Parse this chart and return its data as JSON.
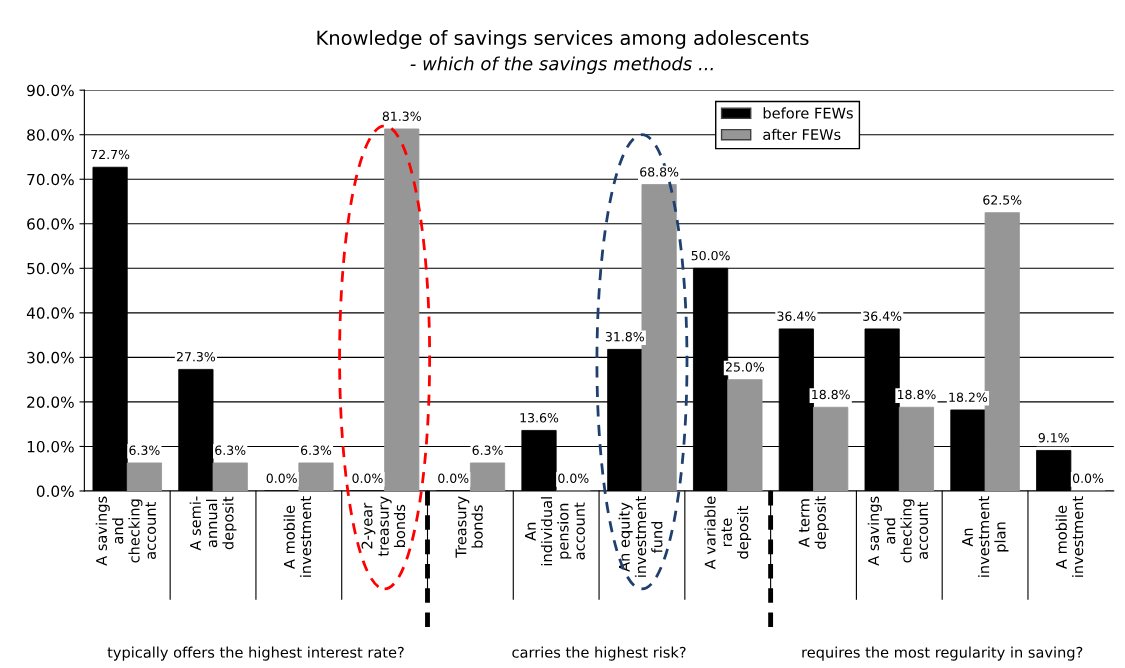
{
  "chart_data": {
    "type": "bar",
    "title": "Knowledge of savings services among adolescents",
    "subtitle": "- which of the savings methods ...",
    "categories": [
      "A savings\nand\nchecking\naccount",
      "A semi-\nannual\ndeposit",
      "A mobile\ninvestment",
      "2-year\ntreasury\nbonds",
      "Treasury\nbonds",
      "An\nindividual\npension\naccount",
      "An equity\ninvestment\nfund",
      "A variable\nrate\ndeposit",
      "A term\ndeposit",
      "A savings\nand\nchecking\naccount",
      "An\ninvestment\nplan",
      "A mobile\ninvestment"
    ],
    "series": [
      {
        "name": "before FEWs",
        "color": "#000000",
        "values": [
          72.7,
          27.3,
          0.0,
          0.0,
          0.0,
          13.6,
          31.8,
          50.0,
          36.4,
          36.4,
          18.2,
          9.1
        ],
        "value_labels": [
          "72.7%",
          "27.3%",
          "0.0%",
          "0.0%",
          "0.0%",
          "13.6%",
          "31.8%",
          "50.0%",
          "36.4%",
          "36.4%",
          "18.2%",
          "9.1%"
        ]
      },
      {
        "name": "after FEWs",
        "color": "#969696",
        "values": [
          6.3,
          6.3,
          6.3,
          81.3,
          6.3,
          0.0,
          68.8,
          25.0,
          18.8,
          18.8,
          62.5,
          0.0
        ],
        "value_labels": [
          "6.3%",
          "6.3%",
          "6.3%",
          "81.3%",
          "6.3%",
          "0.0%",
          "68.8%",
          "25.0%",
          "18.8%",
          "18.8%",
          "62.5%",
          "0.0%"
        ]
      }
    ],
    "annotations": [
      "typically offers the highest interest rate?",
      "carries the highest risk?",
      "requires the most regularity in saving?"
    ],
    "ylim": [
      0,
      90
    ],
    "yticks": [
      {
        "value": 0,
        "label": "0.0%"
      },
      {
        "value": 10,
        "label": "10.0%"
      },
      {
        "value": 20,
        "label": "20.0%"
      },
      {
        "value": 30,
        "label": "30.0%"
      },
      {
        "value": 40,
        "label": "40.0%"
      },
      {
        "value": 50,
        "label": "50.0%"
      },
      {
        "value": 60,
        "label": "60.0%"
      },
      {
        "value": 70,
        "label": "70.0%"
      },
      {
        "value": 80,
        "label": "80.0%"
      },
      {
        "value": 90,
        "label": "90.0%"
      }
    ],
    "grid": "y",
    "legend": "top right"
  }
}
